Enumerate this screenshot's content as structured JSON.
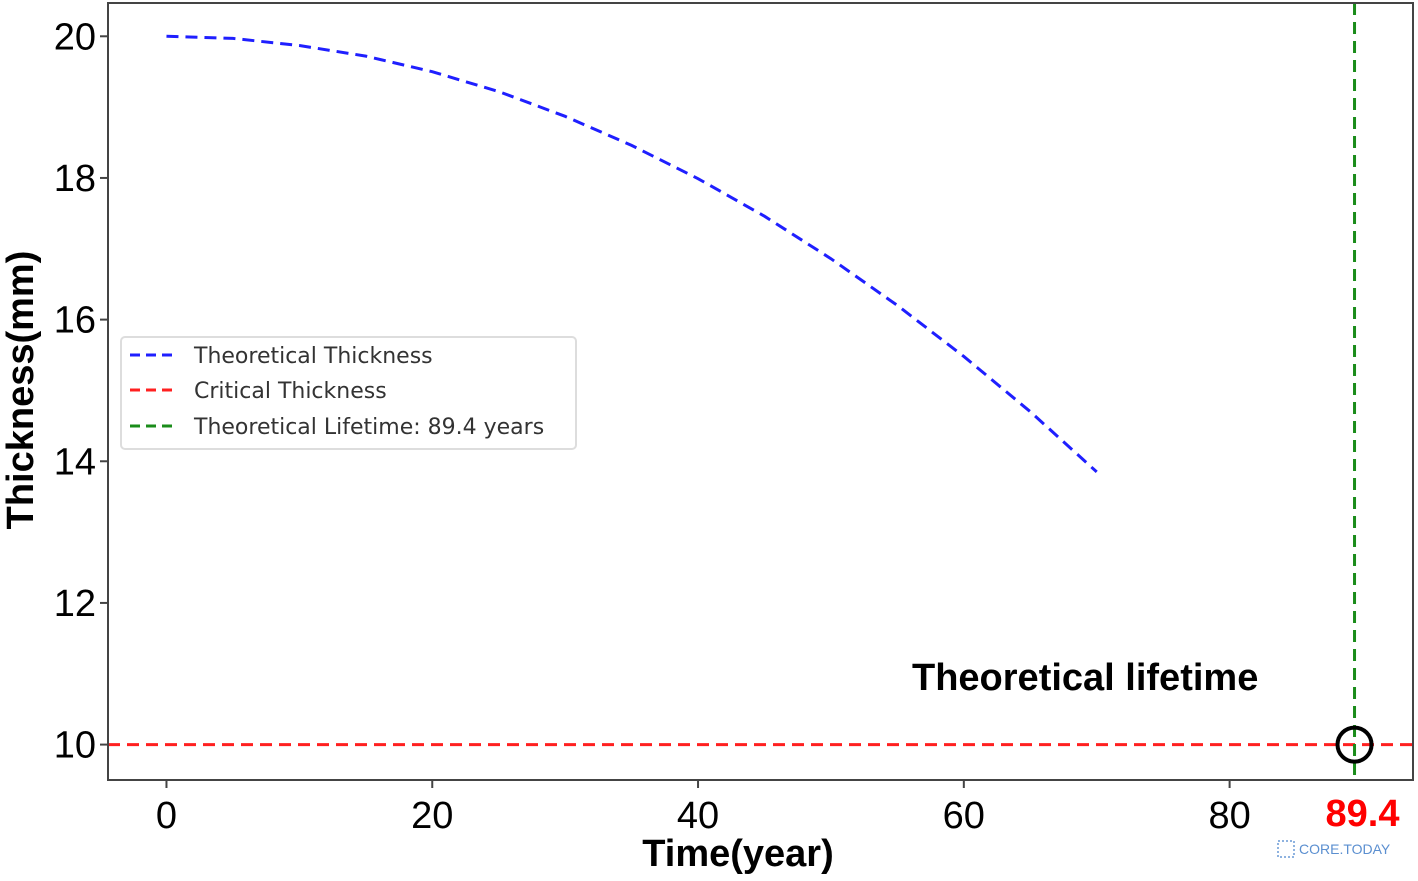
{
  "chart_data": {
    "type": "line",
    "xlabel": "Time(year)",
    "ylabel": "Thickness(mm)",
    "xlim": [
      -4.4,
      93.8
    ],
    "ylim": [
      9.5,
      20.47
    ],
    "xticks": [
      0,
      20,
      40,
      60,
      80
    ],
    "yticks": [
      10,
      12,
      14,
      16,
      18,
      20
    ],
    "grid": false,
    "legend_position": "center-left",
    "series": [
      {
        "name": "Theoretical Thickness",
        "color": "#1f1fff",
        "style": "dashed",
        "x": [
          0,
          5,
          10,
          15,
          20,
          25,
          30,
          35,
          40,
          45,
          50,
          55,
          60,
          65,
          70
        ],
        "y": [
          20.0,
          19.97,
          19.87,
          19.72,
          19.5,
          19.22,
          18.87,
          18.46,
          17.99,
          17.46,
          16.86,
          16.2,
          15.48,
          14.7,
          13.85
        ]
      },
      {
        "name": "Critical Thickness",
        "color": "#ff2020",
        "style": "dashed",
        "y_const": 10
      },
      {
        "name": "Theoretical Lifetime: 89.4 years",
        "color": "#1a8c1a",
        "style": "dashed",
        "x_const": 89.4
      }
    ],
    "annotations": [
      {
        "text": "Theoretical lifetime",
        "x": 89.4,
        "y": 10,
        "marker": "circle"
      },
      {
        "text": "89.4",
        "color": "#ff0000"
      }
    ]
  },
  "watermark": "CORE.TODAY"
}
